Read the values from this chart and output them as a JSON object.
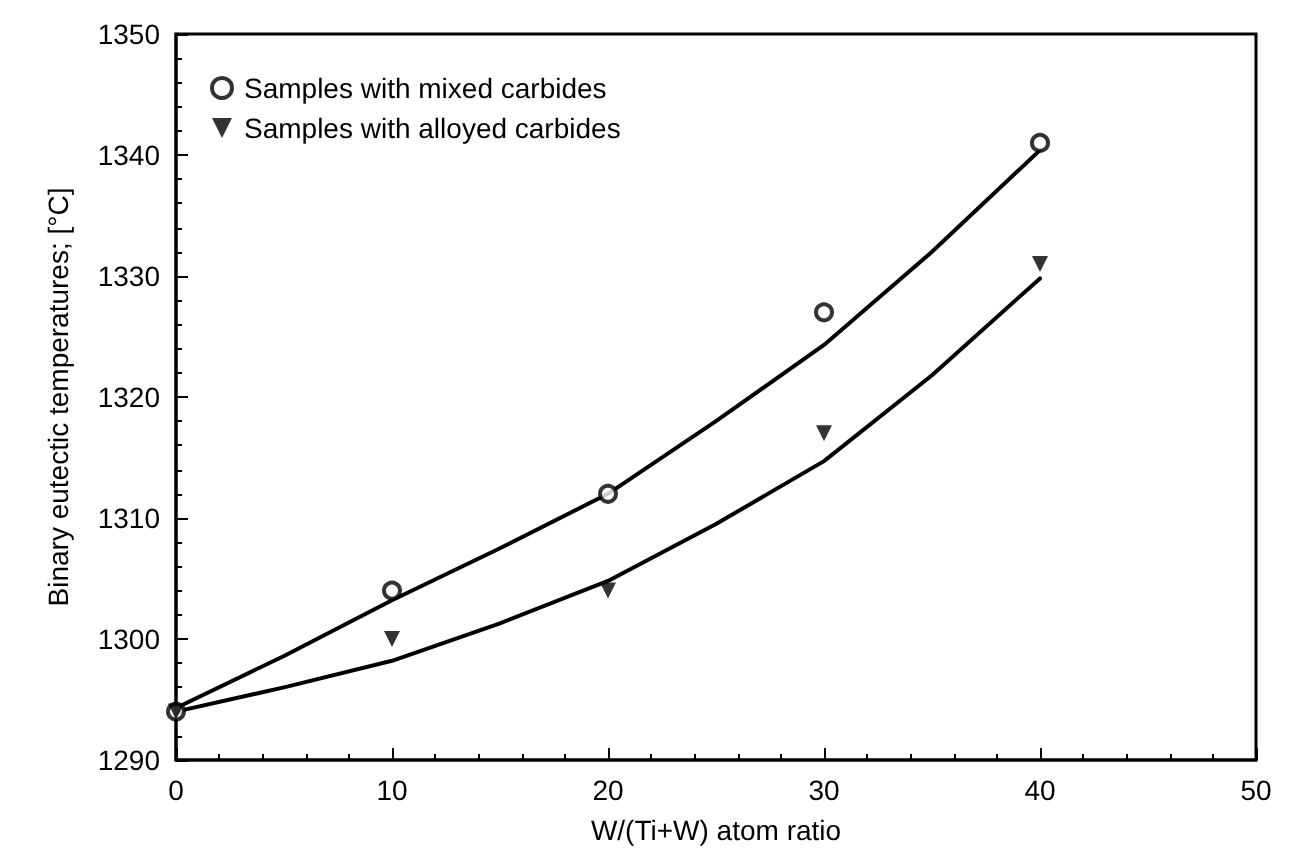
{
  "chart_data": {
    "type": "scatter",
    "xlabel": "W/(Ti+W) atom ratio",
    "ylabel": "Binary eutectic temperatures; [°C]",
    "xlim": [
      0,
      50
    ],
    "xticks": [
      0,
      10,
      20,
      30,
      40,
      50
    ],
    "ylim": [
      1290,
      1350
    ],
    "yticks": [
      1290,
      1300,
      1310,
      1320,
      1330,
      1340,
      1350
    ],
    "grid": false,
    "legend": "top left",
    "series": [
      {
        "name": "Samples with mixed carbides",
        "marker": "circle",
        "color": "#000000",
        "x": [
          0,
          10,
          20,
          30,
          40
        ],
        "values": [
          1294,
          1304,
          1312,
          1327,
          1341
        ]
      },
      {
        "name": "Samples with alloyed carbides",
        "marker": "triangle",
        "color": "#000000",
        "x": [
          0,
          10,
          20,
          30,
          40
        ],
        "values": [
          1294,
          1300,
          1304,
          1317,
          1331
        ]
      },
      {
        "type": "line",
        "marker": "none",
        "color": "#000000",
        "x": [
          0,
          5,
          10,
          15,
          20,
          25,
          30,
          35,
          40
        ],
        "values": [
          1294.3,
          1298.6,
          1303.2,
          1307.5,
          1312,
          1318,
          1324.3,
          1332,
          1340.4
        ]
      },
      {
        "type": "line",
        "marker": "none",
        "color": "#000000",
        "x": [
          0,
          5,
          10,
          15,
          20,
          25,
          30,
          35,
          40
        ],
        "values": [
          1294,
          1296,
          1298.2,
          1301.3,
          1304.8,
          1309.5,
          1314.7,
          1321.8,
          1329.8
        ]
      }
    ]
  }
}
